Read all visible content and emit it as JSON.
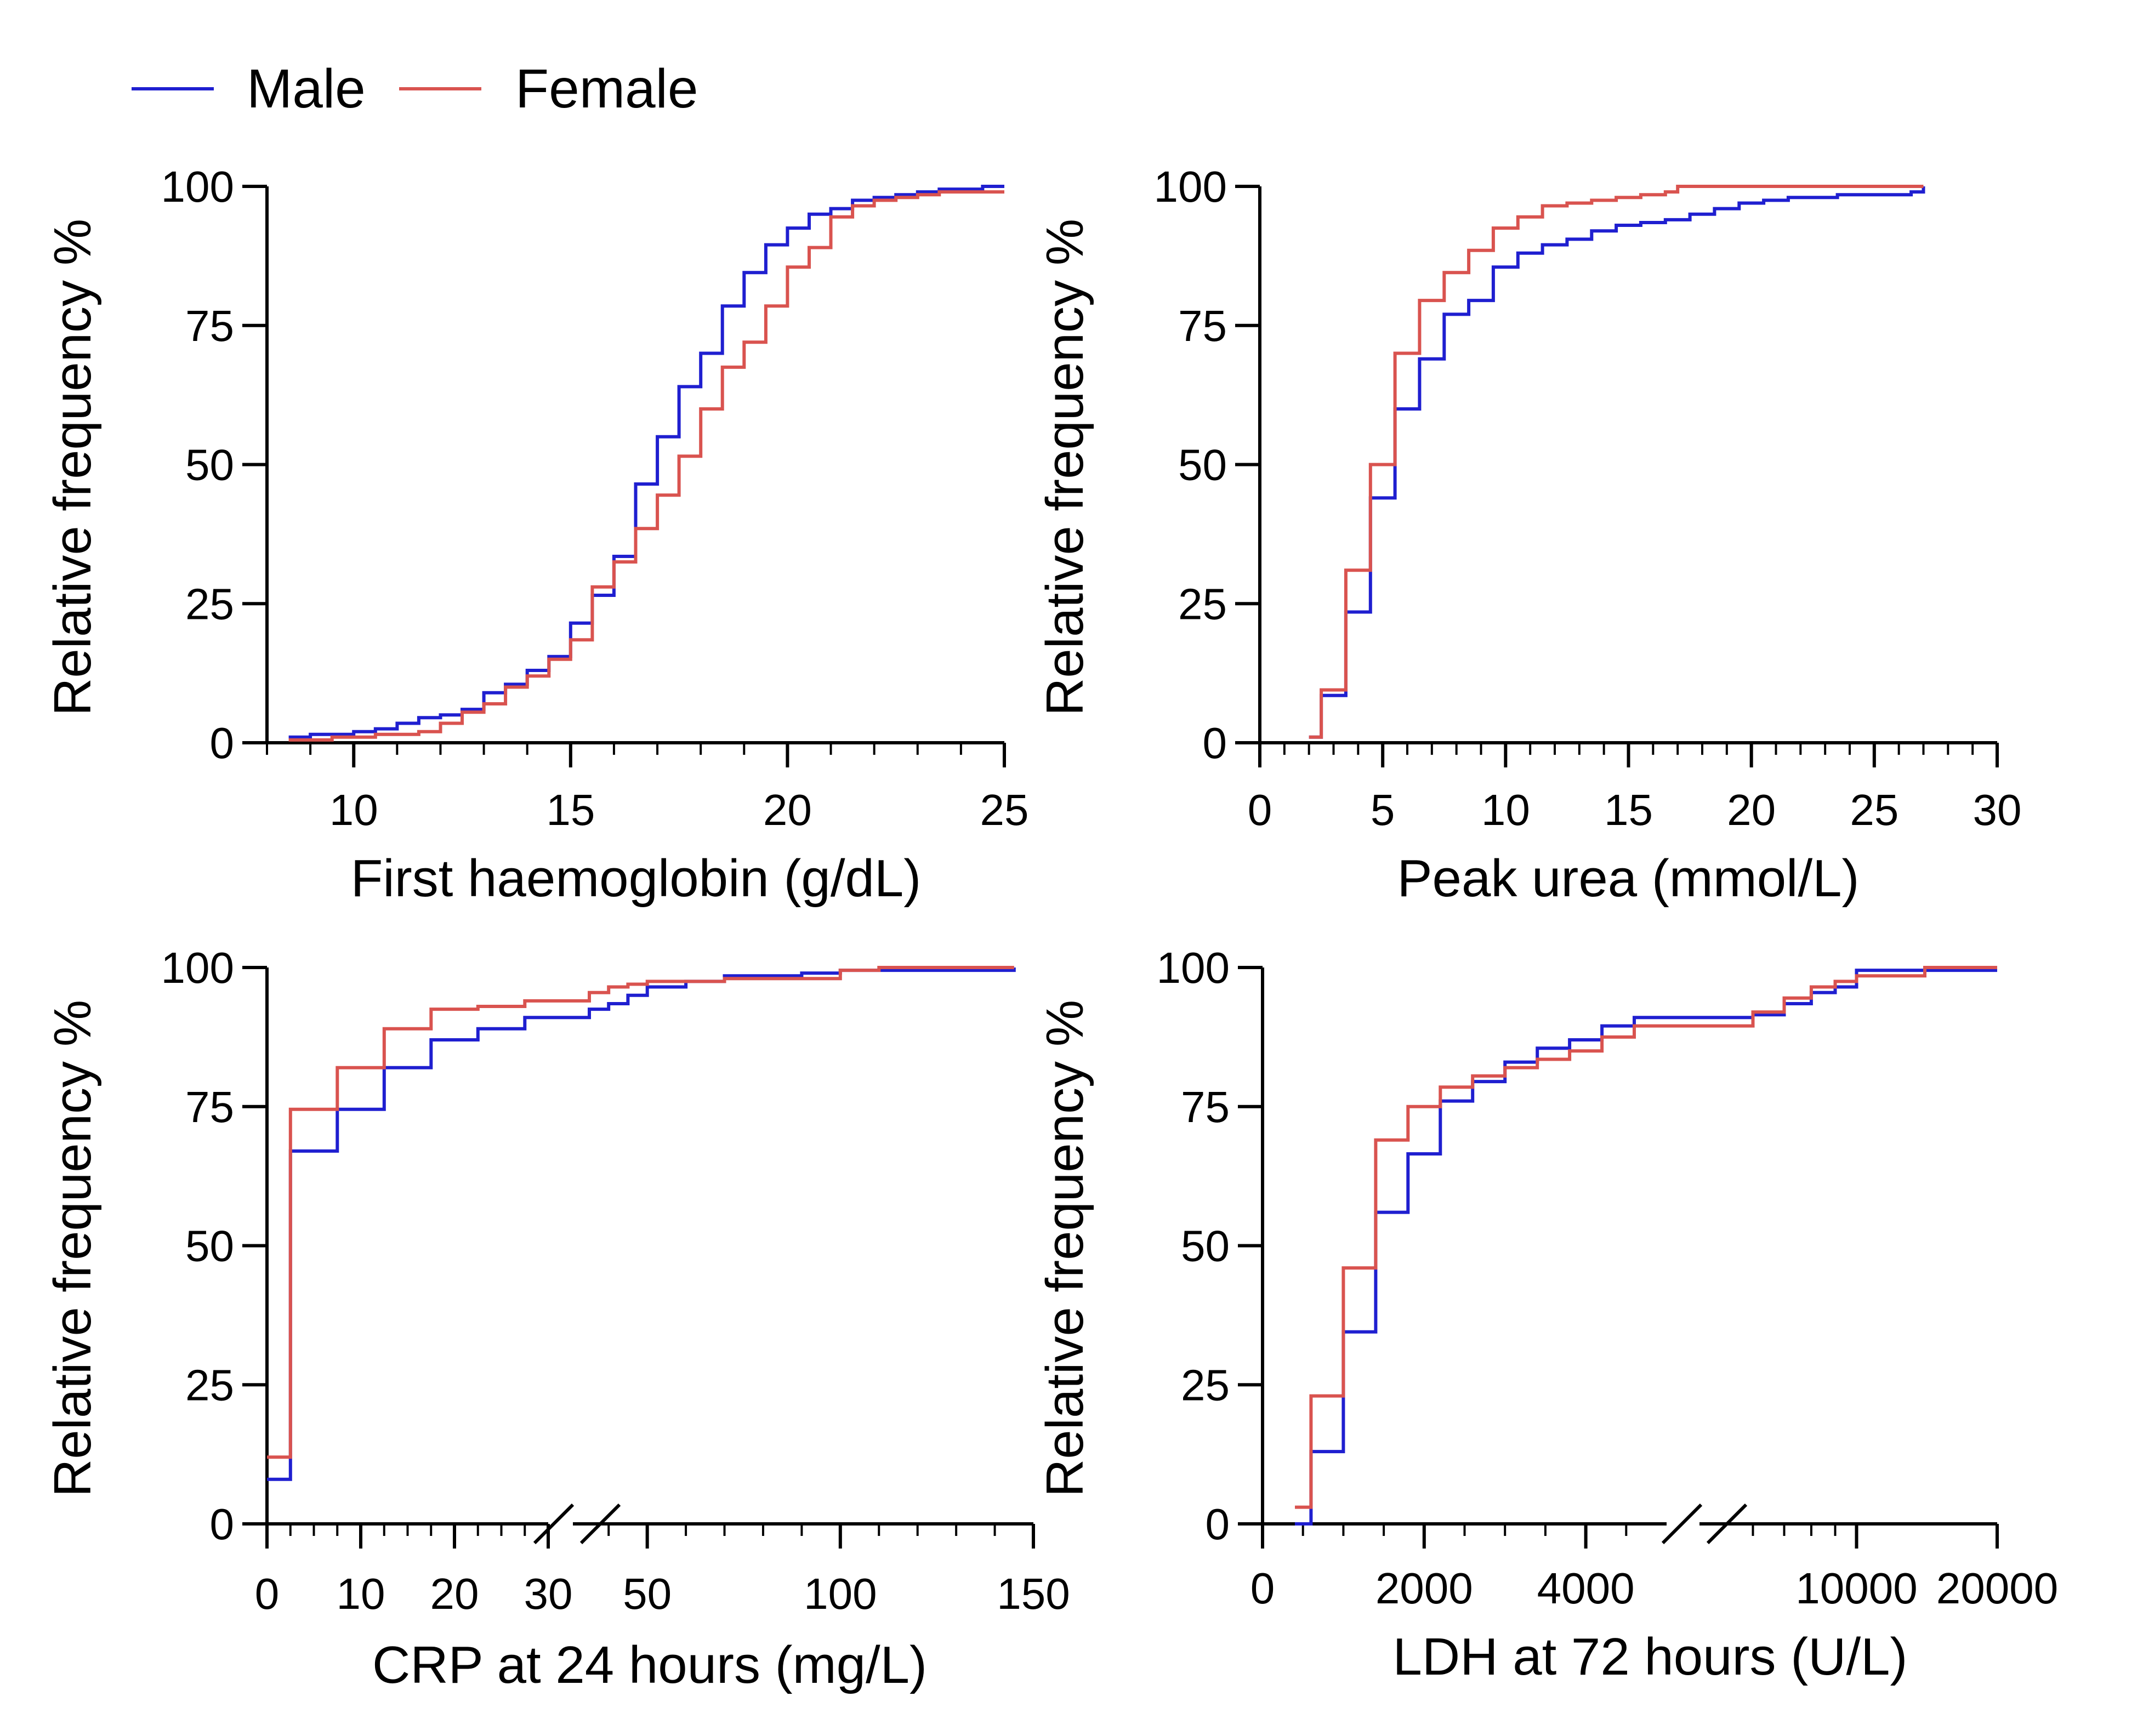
{
  "legend": {
    "placement": "top-left",
    "items": [
      {
        "name": "Male",
        "color": "#1f1fd0"
      },
      {
        "name": "Female",
        "color": "#d9534f"
      }
    ]
  },
  "chart_data": [
    {
      "type": "line",
      "step": true,
      "xlabel": "First haemoglobin (g/dL)",
      "ylabel": "Relative frequency %",
      "xlim": [
        8,
        25
      ],
      "ylim": [
        0,
        100
      ],
      "xticks": [
        10,
        15,
        20,
        25
      ],
      "yticks": [
        0,
        25,
        50,
        75,
        100
      ],
      "series": [
        {
          "name": "Male",
          "x": [
            8.5,
            9,
            9.5,
            10,
            10.5,
            11,
            11.5,
            12,
            12.5,
            13,
            13.5,
            14,
            14.5,
            15,
            15.5,
            16,
            16.5,
            17,
            17.5,
            18,
            18.5,
            19,
            19.5,
            20,
            20.5,
            21,
            21.5,
            22,
            22.5,
            23,
            23.5,
            24,
            24.5,
            25
          ],
          "y": [
            1,
            1.5,
            1.5,
            2,
            2.5,
            3.5,
            4.5,
            5,
            6,
            9,
            10.5,
            13,
            15.5,
            21.5,
            26.5,
            33.5,
            46.5,
            55,
            64,
            70,
            78.5,
            84.5,
            89.5,
            92.5,
            95,
            96,
            97.5,
            98,
            98.5,
            99,
            99.5,
            99.5,
            100,
            100
          ]
        },
        {
          "name": "Female",
          "x": [
            8.5,
            9,
            9.5,
            10,
            10.5,
            11,
            11.5,
            12,
            12.5,
            13,
            13.5,
            14,
            14.5,
            15,
            15.5,
            16,
            16.5,
            17,
            17.5,
            18,
            18.5,
            19,
            19.5,
            20,
            20.5,
            21,
            21.5,
            22,
            22.5,
            23,
            23.5,
            24,
            24.5,
            25
          ],
          "y": [
            0.5,
            0.5,
            1,
            1,
            1.5,
            1.5,
            2,
            3.5,
            5.5,
            7,
            10,
            12,
            15,
            18.5,
            28,
            32.5,
            38.5,
            44.5,
            51.5,
            60,
            67.5,
            72,
            78.5,
            85.5,
            89,
            94.5,
            96.5,
            97.5,
            98,
            98.5,
            99,
            99,
            99,
            99
          ]
        }
      ]
    },
    {
      "type": "line",
      "step": true,
      "xlabel": "Peak urea  (mmol/L)",
      "ylabel": "Relative frequency %",
      "xlim": [
        0,
        30
      ],
      "ylim": [
        0,
        100
      ],
      "xticks": [
        0,
        5,
        10,
        15,
        20,
        25,
        30
      ],
      "yticks": [
        0,
        25,
        50,
        75,
        100
      ],
      "series": [
        {
          "name": "Male",
          "x": [
            2,
            2.5,
            3.5,
            4.5,
            5.5,
            6.5,
            7.5,
            8.5,
            9.5,
            10.5,
            11.5,
            12.5,
            13.5,
            14.5,
            15.5,
            16.5,
            17.5,
            18.5,
            19.5,
            20.5,
            21.5,
            22.5,
            23.5,
            24.5,
            25.5,
            26.5,
            27
          ],
          "y": [
            1,
            8.5,
            23.5,
            44,
            60,
            69,
            77,
            79.5,
            85.5,
            88,
            89.5,
            90.5,
            92,
            93,
            93.5,
            94,
            95,
            96,
            97,
            97.5,
            98,
            98,
            98.5,
            98.5,
            98.5,
            99,
            100
          ]
        },
        {
          "name": "Female",
          "x": [
            2,
            2.5,
            3.5,
            4.5,
            5.5,
            6.5,
            7.5,
            8.5,
            9.5,
            10.5,
            11.5,
            12.5,
            13.5,
            14.5,
            15.5,
            16.5,
            17,
            18,
            20,
            22,
            24,
            26,
            27
          ],
          "y": [
            1,
            9.5,
            31,
            50,
            70,
            79.5,
            84.5,
            88.5,
            92.5,
            94.5,
            96.5,
            97,
            97.5,
            98,
            98.5,
            99,
            100,
            100,
            100,
            100,
            100,
            100,
            100
          ]
        }
      ]
    },
    {
      "type": "line",
      "step": true,
      "broken_x_axis": true,
      "xlabel": "CRP at 24 hours (mg/L)",
      "ylabel": "Relative frequency %",
      "xlim_segments": [
        [
          0,
          30
        ],
        [
          35,
          150
        ]
      ],
      "ylim": [
        0,
        100
      ],
      "xticks": [
        0,
        10,
        20,
        30,
        50,
        100,
        150
      ],
      "yticks": [
        0,
        25,
        50,
        75,
        100
      ],
      "series": [
        {
          "name": "Male",
          "x": [
            0,
            2.5,
            7.5,
            12.5,
            17.5,
            22.5,
            27.5,
            30,
            35,
            40,
            45,
            50,
            60,
            70,
            80,
            90,
            100,
            110,
            120,
            130,
            140,
            145
          ],
          "y": [
            8,
            67,
            74.5,
            82,
            87,
            89,
            91,
            91,
            92.5,
            93.5,
            95,
            96.5,
            97.5,
            98.5,
            98.5,
            99,
            99.5,
            99.5,
            99.5,
            99.5,
            99.5,
            100
          ]
        },
        {
          "name": "Female",
          "x": [
            0,
            2.5,
            7.5,
            12.5,
            17.5,
            22.5,
            27.5,
            30,
            35,
            40,
            45,
            50,
            60,
            70,
            80,
            90,
            100,
            110,
            120,
            130,
            140,
            145
          ],
          "y": [
            12,
            74.5,
            82,
            89,
            92.5,
            93,
            94,
            94,
            95.5,
            96.5,
            97,
            97.5,
            97.5,
            98,
            98,
            98,
            99.5,
            100,
            100,
            100,
            100,
            100
          ]
        }
      ]
    },
    {
      "type": "line",
      "step": true,
      "broken_x_axis": true,
      "xlabel": "LDH at 72 hours (U/L)",
      "ylabel": "Relative frequency %",
      "xlim_segments": [
        [
          0,
          5000
        ],
        [
          5000,
          20000
        ]
      ],
      "ylim": [
        0,
        100
      ],
      "xticks": [
        0,
        2000,
        4000,
        10000,
        20000
      ],
      "yticks": [
        0,
        25,
        50,
        75,
        100
      ],
      "series": [
        {
          "name": "Male",
          "x": [
            400,
            600,
            1000,
            1400,
            1800,
            2200,
            2600,
            3000,
            3400,
            3800,
            4200,
            4600,
            5000,
            6000,
            7000,
            8000,
            9000,
            10000,
            12000,
            14000,
            16000,
            18000,
            20000
          ],
          "y": [
            0,
            13,
            34.5,
            56,
            66.5,
            76,
            79.5,
            83,
            85.5,
            87,
            89.5,
            91,
            91,
            91.5,
            93.5,
            95.5,
            96.5,
            99.5,
            99.5,
            99.5,
            99.5,
            99.5,
            99.5
          ]
        },
        {
          "name": "Female",
          "x": [
            400,
            600,
            1000,
            1400,
            1800,
            2200,
            2600,
            3000,
            3400,
            3800,
            4200,
            4600,
            5000,
            6000,
            7000,
            8000,
            9000,
            10000,
            12000,
            14000,
            16000,
            18000,
            20000
          ],
          "y": [
            3,
            23,
            46,
            69,
            75,
            78.5,
            80.5,
            82,
            83.5,
            85,
            87.5,
            89.5,
            89.5,
            92,
            94.5,
            96.5,
            97.5,
            98.5,
            98.5,
            100,
            100,
            100,
            100
          ]
        }
      ]
    }
  ]
}
